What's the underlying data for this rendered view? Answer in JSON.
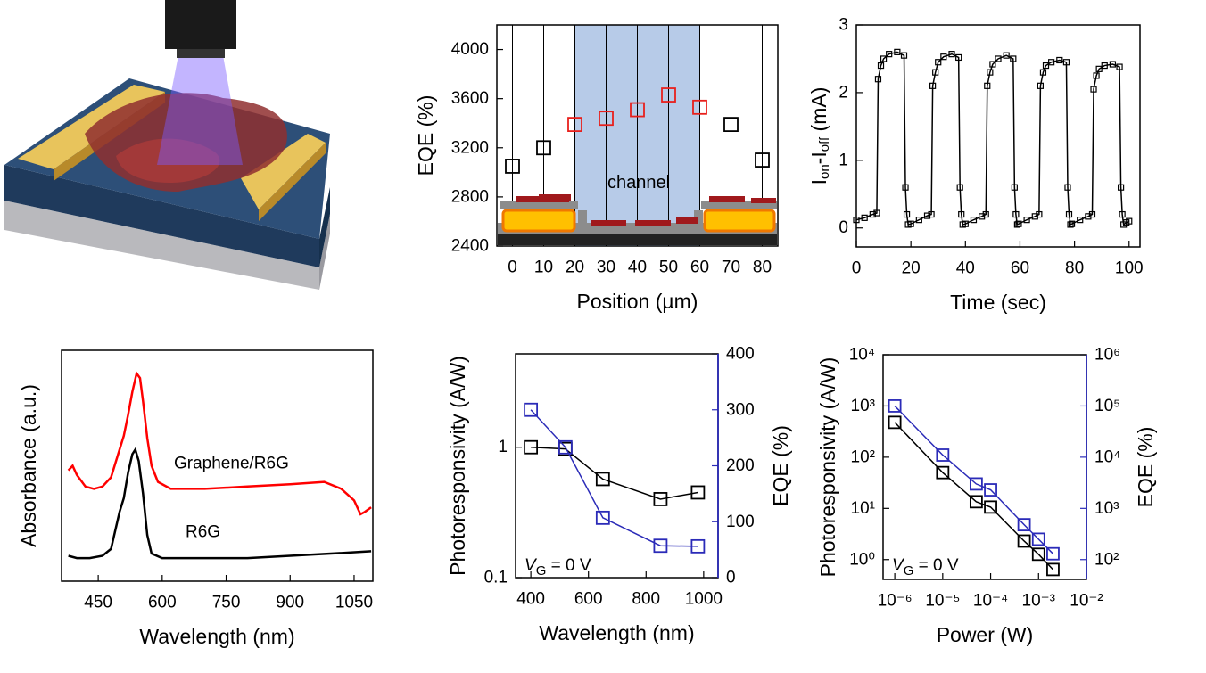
{
  "chart_data": [
    {
      "type": "scatter",
      "xlabel": "Position (µm)",
      "ylabel": "EQE (%)",
      "xlim": [
        -5,
        85
      ],
      "ylim": [
        2400,
        4200
      ],
      "xticks": [
        0,
        10,
        20,
        30,
        40,
        50,
        60,
        70,
        80
      ],
      "yticks": [
        2400,
        2800,
        3200,
        3600,
        4000
      ],
      "grid": "x",
      "span": {
        "x": [
          20,
          60
        ],
        "color": "#b7cbe8"
      },
      "annotation": "channel",
      "annotation_color": "#e8201c",
      "series": [
        {
          "color": "#000000",
          "marker": "square",
          "x": [
            0,
            10,
            70,
            80
          ],
          "values": [
            3050,
            3200,
            3390,
            3100
          ]
        },
        {
          "color": "#e8201c",
          "marker": "square",
          "x": [
            20,
            30,
            40,
            50,
            60
          ],
          "values": [
            3390,
            3440,
            3510,
            3630,
            3530
          ]
        }
      ]
    },
    {
      "type": "line",
      "xlabel": "Time (sec)",
      "ylabel_parts": [
        "I",
        "on",
        "-I",
        "off",
        " (mA)"
      ],
      "xlim": [
        0,
        104
      ],
      "ylim": [
        -0.28,
        3
      ],
      "xticks": [
        0,
        20,
        40,
        60,
        80,
        100
      ],
      "yticks": [
        0,
        1,
        2,
        3
      ],
      "series": [
        {
          "color": "#000000",
          "marker": "square",
          "line": true,
          "x": [
            0,
            3,
            6,
            7.5,
            8,
            9,
            10,
            12,
            15,
            17.5,
            18,
            18.5,
            19,
            20,
            23,
            26,
            27.5,
            28,
            29,
            30,
            32,
            35,
            37.5,
            38,
            38.5,
            39,
            40,
            43,
            46,
            47.5,
            48,
            49,
            50,
            52,
            55,
            57.5,
            58,
            58.5,
            59,
            59.5,
            62.5,
            65.5,
            67,
            67.5,
            68.5,
            69.5,
            71.5,
            74.5,
            77,
            77.5,
            78,
            78.5,
            79,
            82,
            85,
            86.5,
            87,
            88,
            89,
            91,
            94,
            96.5,
            97,
            97.5,
            98,
            99,
            100
          ],
          "values": [
            0.12,
            0.15,
            0.2,
            0.22,
            2.2,
            2.4,
            2.5,
            2.57,
            2.6,
            2.55,
            0.6,
            0.2,
            0.05,
            0.06,
            0.12,
            0.18,
            0.2,
            2.1,
            2.3,
            2.45,
            2.53,
            2.57,
            2.52,
            0.6,
            0.2,
            0.05,
            0.06,
            0.12,
            0.17,
            0.2,
            2.1,
            2.3,
            2.42,
            2.5,
            2.55,
            2.5,
            0.6,
            0.2,
            0.05,
            0.06,
            0.12,
            0.17,
            0.2,
            2.1,
            2.3,
            2.4,
            2.45,
            2.48,
            2.45,
            0.6,
            0.2,
            0.05,
            0.06,
            0.12,
            0.17,
            0.2,
            2.05,
            2.25,
            2.35,
            2.4,
            2.42,
            2.38,
            0.6,
            0.2,
            0.05,
            0.08,
            0.1
          ]
        }
      ]
    },
    {
      "type": "line",
      "xlabel": "Wavelength (nm)",
      "ylabel": "Absorbance (a.u.)",
      "xlim": [
        364,
        1094
      ],
      "ylim": [
        0,
        1
      ],
      "xticks": [
        450,
        600,
        750,
        900,
        1050
      ],
      "series": [
        {
          "name": "Graphene/R6G",
          "color": "#ff0000",
          "line": true,
          "x": [
            380,
            390,
            400,
            420,
            440,
            460,
            480,
            500,
            510,
            520,
            530,
            540,
            548,
            555,
            565,
            575,
            590,
            620,
            700,
            800,
            900,
            980,
            1020,
            1050,
            1065,
            1075,
            1090
          ],
          "values": [
            0.48,
            0.5,
            0.46,
            0.41,
            0.4,
            0.41,
            0.45,
            0.57,
            0.63,
            0.72,
            0.82,
            0.9,
            0.88,
            0.78,
            0.62,
            0.5,
            0.43,
            0.4,
            0.4,
            0.41,
            0.42,
            0.43,
            0.4,
            0.35,
            0.29,
            0.3,
            0.32
          ]
        },
        {
          "name": "R6G",
          "color": "#000000",
          "line": true,
          "x": [
            380,
            400,
            430,
            460,
            480,
            500,
            510,
            520,
            530,
            537,
            545,
            555,
            565,
            575,
            600,
            650,
            700,
            800,
            900,
            1000,
            1090
          ],
          "values": [
            0.11,
            0.1,
            0.1,
            0.11,
            0.14,
            0.3,
            0.36,
            0.47,
            0.55,
            0.57,
            0.52,
            0.38,
            0.2,
            0.12,
            0.1,
            0.1,
            0.1,
            0.1,
            0.11,
            0.12,
            0.13
          ]
        }
      ]
    },
    {
      "type": "scatter",
      "xlabel": "Wavelength (nm)",
      "ylabel": "Photoresponsivity (A/W)",
      "y2label": "EQE (%)",
      "y2color": "#2b2bb8",
      "xlim": [
        347,
        1050
      ],
      "ylim": [
        0.1,
        5.2
      ],
      "ylog": true,
      "y2lim": [
        0,
        400
      ],
      "xticks": [
        400,
        600,
        800,
        1000
      ],
      "yticks": [
        0.1,
        1
      ],
      "y2ticks": [
        0,
        100,
        200,
        300,
        400
      ],
      "annotation_parts": [
        "V",
        "G",
        " = 0 V"
      ],
      "series": [
        {
          "color": "#000000",
          "marker": "square",
          "line": true,
          "x": [
            400,
            520,
            650,
            850,
            980
          ],
          "values": [
            1.0,
            0.97,
            0.57,
            0.4,
            0.45
          ]
        },
        {
          "color": "#2b2bb8",
          "marker": "square",
          "line": true,
          "axis": "y2",
          "x": [
            400,
            520,
            650,
            850,
            980
          ],
          "values": [
            300,
            233,
            107,
            57,
            56
          ]
        }
      ]
    },
    {
      "type": "scatter",
      "xlabel": "Power (W)",
      "ylabel": "Photoresponsivity (A/W)",
      "y2label": "EQE (%)",
      "y2color": "#2b2bb8",
      "xlim": [
        5.7e-07,
        0.01
      ],
      "xlog": true,
      "ylim": [
        0.41,
        10000
      ],
      "ylog": true,
      "y2lim": [
        41,
        1000000
      ],
      "y2log": true,
      "xticks": [
        {
          "value": 1e-06,
          "label": "10⁻⁶"
        },
        {
          "value": 1e-05,
          "label": "10⁻⁵"
        },
        {
          "value": 0.0001,
          "label": "10⁻⁴"
        },
        {
          "value": 0.001,
          "label": "10⁻³"
        },
        {
          "value": 0.01,
          "label": "10⁻²"
        }
      ],
      "yticks": [
        {
          "value": 1,
          "label": "10⁰"
        },
        {
          "value": 10,
          "label": "10¹"
        },
        {
          "value": 100,
          "label": "10²"
        },
        {
          "value": 1000,
          "label": "10³"
        },
        {
          "value": 10000,
          "label": "10⁴"
        }
      ],
      "y2ticks": [
        {
          "value": 100,
          "label": "10²"
        },
        {
          "value": 1000,
          "label": "10³"
        },
        {
          "value": 10000,
          "label": "10⁴"
        },
        {
          "value": 100000,
          "label": "10⁵"
        },
        {
          "value": 1000000,
          "label": "10⁶"
        }
      ],
      "annotation_parts": [
        "V",
        "G",
        " = 0 V"
      ],
      "series": [
        {
          "color": "#000000",
          "marker": "square",
          "line": true,
          "x": [
            1e-06,
            1e-05,
            5e-05,
            0.0001,
            0.0005,
            0.001,
            0.002
          ],
          "values": [
            478,
            50,
            13.5,
            10.6,
            2.3,
            1.27,
            0.64
          ]
        },
        {
          "color": "#2b2bb8",
          "marker": "square",
          "line": true,
          "axis": "y2",
          "x": [
            1e-06,
            1e-05,
            5e-05,
            0.0001,
            0.0005,
            0.001,
            0.002
          ],
          "values": [
            100000,
            11000,
            3000,
            2300,
            480,
            250,
            130
          ]
        }
      ]
    }
  ]
}
